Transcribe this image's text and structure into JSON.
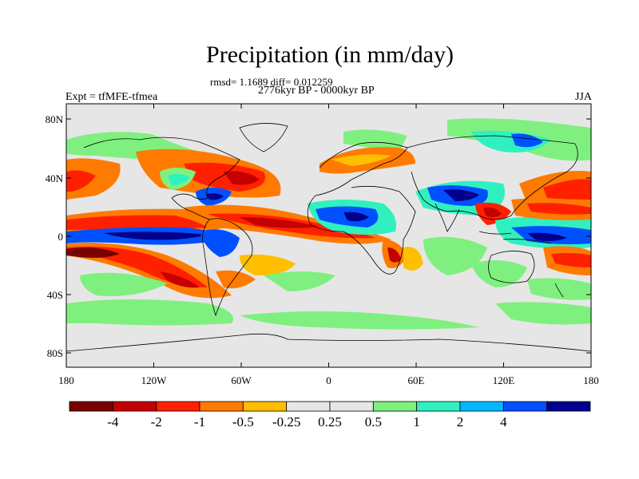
{
  "title": "Precipitation (in mm/day)",
  "stats_line": "rmsd= 1.1689 diff= 0.012259",
  "period_line": "2776kyr BP - 0000kyr BP",
  "left_string": "Expt = tfMFE-tfmea",
  "right_string": "JJA",
  "lat_ticks": [
    "80N",
    "40N",
    "0",
    "40S",
    "80S"
  ],
  "lon_ticks": [
    "180",
    "120W",
    "60W",
    "0",
    "60E",
    "120E",
    "180"
  ],
  "colorbar": {
    "colors": [
      "#7a0000",
      "#c40000",
      "#ff2000",
      "#ff7a00",
      "#ffbf00",
      "#e6e6e6",
      "#e6e6e6",
      "#7ff07f",
      "#30f0c0",
      "#00b8ff",
      "#0050ff",
      "#00008c"
    ],
    "labels": [
      "-4",
      "-2",
      "-1",
      "-0.5",
      "-0.25",
      "0.25",
      "0.5",
      "1",
      "2",
      "4"
    ]
  },
  "fill_color_missing": "#e6e6e6"
}
